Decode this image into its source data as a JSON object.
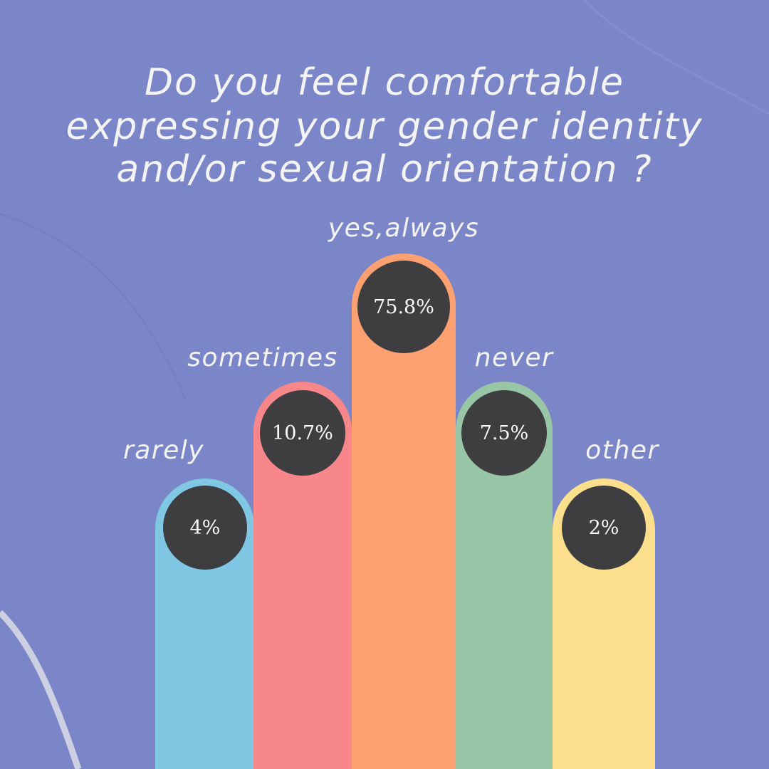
{
  "chart_data": {
    "type": "bar",
    "title_lines": [
      "Do you feel comfortable",
      "expressing your gender identity",
      "and/or sexual orientation ?"
    ],
    "categories": [
      "rarely",
      "sometimes",
      "yes,always",
      "never",
      "other"
    ],
    "values": [
      4,
      10.7,
      75.8,
      7.5,
      2
    ],
    "value_labels": [
      "4%",
      "10.7%",
      "75.8%",
      "7.5%",
      "2%"
    ],
    "colors": [
      "#7fc7e2",
      "#f7878a",
      "#fda173",
      "#97c5a6",
      "#fcdf8c"
    ],
    "badge_color": "#3e3d3f",
    "background": "#7b86c8"
  }
}
